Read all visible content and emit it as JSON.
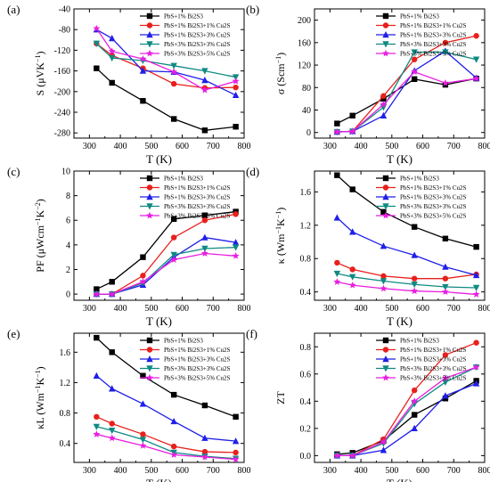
{
  "legend": [
    {
      "name": "PbS+1% Bi2S3",
      "color": "#000000",
      "marker": "square"
    },
    {
      "name": "PbS+1% Bi2S3+1% Cu2S",
      "color": "#e8201c",
      "marker": "circle"
    },
    {
      "name": "PbS+1% Bi2S3+3% Cu2S",
      "color": "#1f1fe8",
      "marker": "triangle"
    },
    {
      "name": "PbS+3% Bi2S3+3% Cu2S",
      "color": "#0f8a82",
      "marker": "triangle-down"
    },
    {
      "name": "PbS+3% Bi2S3+5% Cu2S",
      "color": "#e81ee0",
      "marker": "star"
    }
  ],
  "chart_data": [
    {
      "type": "line",
      "panel": "(a)",
      "xlabel": "T (K)",
      "ylabel": "S (μVK⁻¹)",
      "xlim": [
        250,
        800
      ],
      "ylim": [
        -290,
        -40
      ],
      "xticks": [
        300,
        400,
        500,
        600,
        700,
        800
      ],
      "yticks": [
        -280,
        -240,
        -200,
        -160,
        -120,
        -80,
        -40
      ],
      "x": [
        323,
        373,
        473,
        573,
        673,
        773
      ],
      "series": [
        {
          "name": "PbS+1% Bi2S3",
          "values": [
            -155,
            -183,
            -218,
            -253,
            -275,
            -268
          ]
        },
        {
          "name": "PbS+1% Bi2S3+1% Cu2S",
          "values": [
            -107,
            -130,
            -155,
            -185,
            -193,
            -192
          ]
        },
        {
          "name": "PbS+1% Bi2S3+3% Cu2S",
          "values": [
            -80,
            -97,
            -160,
            -162,
            -178,
            -207
          ]
        },
        {
          "name": "PbS+3% Bi2S3+3% Cu2S",
          "values": [
            -107,
            -135,
            -140,
            -150,
            -160,
            -172
          ]
        },
        {
          "name": "PbS+3% Bi2S3+5% Cu2S",
          "values": [
            -78,
            -122,
            -137,
            -162,
            -197,
            -180
          ]
        }
      ]
    },
    {
      "type": "line",
      "panel": "(b)",
      "xlabel": "T (K)",
      "ylabel": "σ (Scm⁻¹)",
      "xlim": [
        250,
        800
      ],
      "ylim": [
        -10,
        220
      ],
      "xticks": [
        300,
        400,
        500,
        600,
        700,
        800
      ],
      "yticks": [
        0,
        40,
        80,
        120,
        160,
        200
      ],
      "x": [
        323,
        373,
        473,
        573,
        673,
        773
      ],
      "series": [
        {
          "name": "PbS+1% Bi2S3",
          "values": [
            16,
            30,
            60,
            95,
            85,
            96
          ]
        },
        {
          "name": "PbS+1% Bi2S3+1% Cu2S",
          "values": [
            1,
            2,
            65,
            130,
            160,
            172
          ]
        },
        {
          "name": "PbS+1% Bi2S3+3% Cu2S",
          "values": [
            1,
            2,
            30,
            110,
            145,
            97
          ]
        },
        {
          "name": "PbS+3% Bi2S3+3% Cu2S",
          "values": [
            1,
            2,
            45,
            143,
            143,
            130
          ]
        },
        {
          "name": "PbS+3% Bi2S3+5% Cu2S",
          "values": [
            1,
            2,
            50,
            108,
            88,
            96
          ]
        }
      ]
    },
    {
      "type": "line",
      "panel": "(c)",
      "xlabel": "T (K)",
      "ylabel": "PF (μWcm⁻¹K⁻²)",
      "xlim": [
        250,
        800
      ],
      "ylim": [
        -0.5,
        10
      ],
      "xticks": [
        300,
        400,
        500,
        600,
        700,
        800
      ],
      "yticks": [
        0,
        2,
        4,
        6,
        8,
        10
      ],
      "x": [
        323,
        373,
        473,
        573,
        673,
        773
      ],
      "series": [
        {
          "name": "PbS+1% Bi2S3",
          "values": [
            0.4,
            1.0,
            3.0,
            6.1,
            6.4,
            6.7
          ]
        },
        {
          "name": "PbS+1% Bi2S3+1% Cu2S",
          "values": [
            0.0,
            0.0,
            1.5,
            4.6,
            6.0,
            6.5
          ]
        },
        {
          "name": "PbS+1% Bi2S3+3% Cu2S",
          "values": [
            0.0,
            0.0,
            0.75,
            3.0,
            4.6,
            4.2
          ]
        },
        {
          "name": "PbS+3% Bi2S3+3% Cu2S",
          "values": [
            0.0,
            0.0,
            0.9,
            3.2,
            3.7,
            3.8
          ]
        },
        {
          "name": "PbS+3% Bi2S3+5% Cu2S",
          "values": [
            0.0,
            0.0,
            1.0,
            2.8,
            3.3,
            3.1
          ]
        }
      ]
    },
    {
      "type": "line",
      "panel": "(d)",
      "xlabel": "T (K)",
      "ylabel": "κ (Wm⁻¹K⁻¹)",
      "xlim": [
        250,
        800
      ],
      "ylim": [
        0.3,
        1.85
      ],
      "xticks": [
        300,
        400,
        500,
        600,
        700,
        800
      ],
      "yticks": [
        0.4,
        0.8,
        1.2,
        1.6
      ],
      "x": [
        323,
        373,
        473,
        573,
        673,
        773
      ],
      "series": [
        {
          "name": "PbS+1% Bi2S3",
          "values": [
            1.8,
            1.63,
            1.36,
            1.18,
            1.04,
            0.94
          ]
        },
        {
          "name": "PbS+1% Bi2S3+1% Cu2S",
          "values": [
            0.75,
            0.67,
            0.59,
            0.56,
            0.56,
            0.61
          ]
        },
        {
          "name": "PbS+1% Bi2S3+3% Cu2S",
          "values": [
            1.29,
            1.12,
            0.95,
            0.84,
            0.7,
            0.6
          ]
        },
        {
          "name": "PbS+3% Bi2S3+3% Cu2S",
          "values": [
            0.62,
            0.58,
            0.53,
            0.49,
            0.46,
            0.45
          ]
        },
        {
          "name": "PbS+3% Bi2S3+5% Cu2S",
          "values": [
            0.52,
            0.48,
            0.44,
            0.41,
            0.4,
            0.37
          ]
        }
      ]
    },
    {
      "type": "line",
      "panel": "(e)",
      "xlabel": "T (K)",
      "ylabel": "κL (Wm⁻¹K⁻¹)",
      "xlim": [
        250,
        800
      ],
      "ylim": [
        0.15,
        1.85
      ],
      "xticks": [
        300,
        400,
        500,
        600,
        700,
        800
      ],
      "yticks": [
        0.4,
        0.8,
        1.2,
        1.6
      ],
      "x": [
        323,
        373,
        473,
        573,
        673,
        773
      ],
      "series": [
        {
          "name": "PbS+1% Bi2S3",
          "values": [
            1.79,
            1.6,
            1.29,
            1.04,
            0.9,
            0.75
          ]
        },
        {
          "name": "PbS+1% Bi2S3+1% Cu2S",
          "values": [
            0.75,
            0.66,
            0.52,
            0.36,
            0.29,
            0.28
          ]
        },
        {
          "name": "PbS+1% Bi2S3+3% Cu2S",
          "values": [
            1.29,
            1.12,
            0.92,
            0.69,
            0.47,
            0.43
          ]
        },
        {
          "name": "PbS+3% Bi2S3+3% Cu2S",
          "values": [
            0.62,
            0.57,
            0.45,
            0.28,
            0.23,
            0.2
          ]
        },
        {
          "name": "PbS+3% Bi2S3+5% Cu2S",
          "values": [
            0.52,
            0.47,
            0.37,
            0.25,
            0.22,
            0.19
          ]
        }
      ]
    },
    {
      "type": "line",
      "panel": "(f)",
      "xlabel": "T (K)",
      "ylabel": "ZT",
      "xlim": [
        250,
        800
      ],
      "ylim": [
        -0.05,
        0.9
      ],
      "xticks": [
        300,
        400,
        500,
        600,
        700,
        800
      ],
      "yticks": [
        0.0,
        0.2,
        0.4,
        0.6,
        0.8
      ],
      "x": [
        323,
        373,
        473,
        573,
        673,
        773
      ],
      "series": [
        {
          "name": "PbS+1% Bi2S3",
          "values": [
            0.01,
            0.02,
            0.11,
            0.3,
            0.42,
            0.55
          ]
        },
        {
          "name": "PbS+1% Bi2S3+1% Cu2S",
          "values": [
            0.0,
            0.0,
            0.12,
            0.48,
            0.74,
            0.83
          ]
        },
        {
          "name": "PbS+1% Bi2S3+3% Cu2S",
          "values": [
            0.0,
            0.0,
            0.04,
            0.2,
            0.44,
            0.53
          ]
        },
        {
          "name": "PbS+3% Bi2S3+3% Cu2S",
          "values": [
            0.0,
            0.0,
            0.09,
            0.38,
            0.54,
            0.65
          ]
        },
        {
          "name": "PbS+3% Bi2S3+5% Cu2S",
          "values": [
            0.0,
            0.0,
            0.1,
            0.4,
            0.57,
            0.65
          ]
        }
      ]
    }
  ]
}
